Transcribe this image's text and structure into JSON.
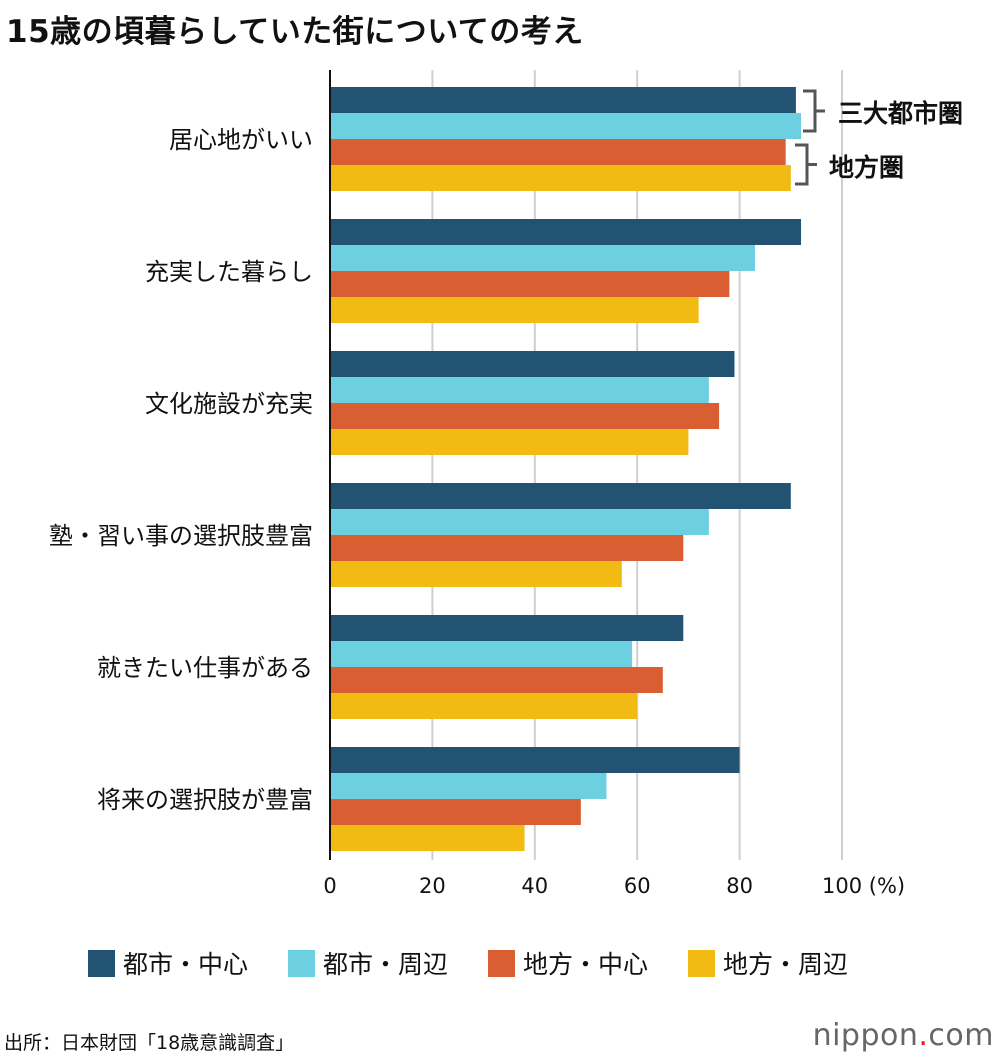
{
  "chart_data": {
    "type": "bar",
    "orientation": "horizontal",
    "title": "15歳の頃暮らしていた街についての考え",
    "categories": [
      "居心地がいい",
      "充実した暮らし",
      "文化施設が充実",
      "塾・習い事の選択肢豊富",
      "就きたい仕事がある",
      "将来の選択肢が豊富"
    ],
    "series": [
      {
        "name": "都市・中心",
        "color": "#225373",
        "values": [
          91,
          92,
          79,
          90,
          69,
          80
        ]
      },
      {
        "name": "都市・周辺",
        "color": "#6dd0e1",
        "values": [
          92,
          83,
          74,
          74,
          59,
          54
        ]
      },
      {
        "name": "地方・中心",
        "color": "#d95f32",
        "values": [
          89,
          78,
          76,
          69,
          65,
          49
        ]
      },
      {
        "name": "地方・周辺",
        "color": "#f2bb14",
        "values": [
          90,
          72,
          70,
          57,
          60,
          38
        ]
      }
    ],
    "xlim": [
      0,
      100
    ],
    "xticks": [
      "0",
      "20",
      "40",
      "60",
      "80",
      "100 (%)"
    ],
    "grid": true,
    "legend_position": "bottom",
    "annotations": [
      "三大都市圏",
      "地方圏"
    ]
  },
  "source": "出所：日本財団「18歳意識調査」",
  "logo": {
    "main": "nippon",
    "dot": ".",
    "suffix": "com"
  }
}
